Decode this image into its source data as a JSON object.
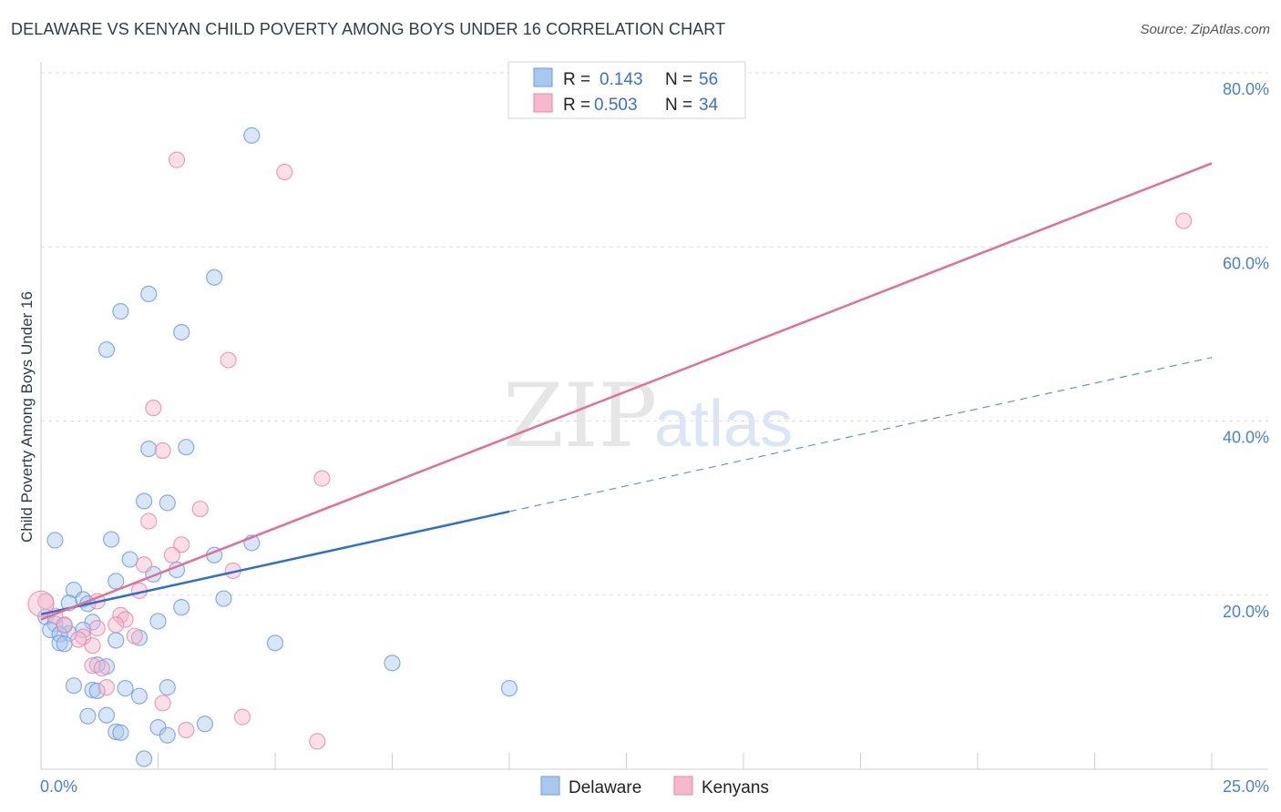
{
  "title": "DELAWARE VS KENYAN CHILD POVERTY AMONG BOYS UNDER 16 CORRELATION CHART",
  "source": "Source: ZipAtlas.com",
  "watermark": {
    "zip": "ZIP",
    "atlas": "atlas"
  },
  "legend": {
    "r_label": "R =",
    "n_label": "N =",
    "rows": [
      {
        "r": "0.143",
        "n": "56"
      },
      {
        "r": "0.503",
        "n": "34"
      }
    ]
  },
  "colors": {
    "delaware_fill": "#a9c8f0",
    "delaware_stroke": "#6b9be0",
    "delaware_line": "#2e6fce",
    "kenyans_fill": "#f5b8cc",
    "kenyans_stroke": "#e889a8",
    "kenyans_line": "#e07098"
  },
  "chart_data": {
    "type": "scatter",
    "title": "DELAWARE VS KENYAN CHILD POVERTY AMONG BOYS UNDER 16 CORRELATION CHART",
    "xlabel": "",
    "ylabel": "Child Poverty Among Boys Under 16",
    "xlim": [
      0,
      25
    ],
    "ylim": [
      0,
      80
    ],
    "x_tick_labels": [
      "0.0%",
      "25.0%"
    ],
    "y_ticks": [
      20,
      40,
      60,
      80
    ],
    "y_tick_labels": [
      "20.0%",
      "40.0%",
      "60.0%",
      "80.0%"
    ],
    "grid": true,
    "legend_position": "top-center",
    "series": [
      {
        "name": "Delaware",
        "r": 0.143,
        "n": 56,
        "trend": {
          "x0": 0,
          "y0": 17.8,
          "x1": 10,
          "y1": 29.6,
          "dashed_to_x": 25,
          "dashed_to_y": 47.3
        },
        "points": [
          [
            4.5,
            72.8
          ],
          [
            3.7,
            56.5
          ],
          [
            2.3,
            54.6
          ],
          [
            1.7,
            52.6
          ],
          [
            3.0,
            50.2
          ],
          [
            1.4,
            48.2
          ],
          [
            2.3,
            36.8
          ],
          [
            3.1,
            37.0
          ],
          [
            2.2,
            30.8
          ],
          [
            2.7,
            30.6
          ],
          [
            0.3,
            26.3
          ],
          [
            1.5,
            26.4
          ],
          [
            4.5,
            26.0
          ],
          [
            1.9,
            24.1
          ],
          [
            3.7,
            24.6
          ],
          [
            2.4,
            22.4
          ],
          [
            2.9,
            22.9
          ],
          [
            1.6,
            21.6
          ],
          [
            0.7,
            20.6
          ],
          [
            0.9,
            19.5
          ],
          [
            1.0,
            19.0
          ],
          [
            0.6,
            19.1
          ],
          [
            3.9,
            19.6
          ],
          [
            3.0,
            18.6
          ],
          [
            0.1,
            17.5
          ],
          [
            2.5,
            17.0
          ],
          [
            0.3,
            16.7
          ],
          [
            0.5,
            16.5
          ],
          [
            1.1,
            16.9
          ],
          [
            0.9,
            16.0
          ],
          [
            0.2,
            16.0
          ],
          [
            0.6,
            15.6
          ],
          [
            0.4,
            15.5
          ],
          [
            2.1,
            15.1
          ],
          [
            1.6,
            14.8
          ],
          [
            0.4,
            14.5
          ],
          [
            0.5,
            14.4
          ],
          [
            5.0,
            14.5
          ],
          [
            7.5,
            12.2
          ],
          [
            1.4,
            11.8
          ],
          [
            1.2,
            12.0
          ],
          [
            0.7,
            9.6
          ],
          [
            1.8,
            9.3
          ],
          [
            1.1,
            9.1
          ],
          [
            1.2,
            9.0
          ],
          [
            2.7,
            9.4
          ],
          [
            10.0,
            9.3
          ],
          [
            2.1,
            8.4
          ],
          [
            1.0,
            6.1
          ],
          [
            1.4,
            6.2
          ],
          [
            3.5,
            5.2
          ],
          [
            2.5,
            4.8
          ],
          [
            1.6,
            4.3
          ],
          [
            1.7,
            4.2
          ],
          [
            2.7,
            3.9
          ],
          [
            2.2,
            1.2
          ]
        ]
      },
      {
        "name": "Kenyans",
        "r": 0.503,
        "n": 34,
        "trend": {
          "x0": 0,
          "y0": 17.2,
          "x1": 25,
          "y1": 69.6
        },
        "points": [
          [
            2.9,
            70.0
          ],
          [
            5.2,
            68.6
          ],
          [
            24.4,
            63.0
          ],
          [
            4.0,
            47.0
          ],
          [
            2.4,
            41.5
          ],
          [
            2.6,
            36.6
          ],
          [
            6.0,
            33.4
          ],
          [
            3.4,
            29.9
          ],
          [
            2.3,
            28.5
          ],
          [
            3.0,
            25.8
          ],
          [
            2.8,
            24.6
          ],
          [
            2.2,
            23.5
          ],
          [
            4.1,
            22.8
          ],
          [
            2.1,
            20.5
          ],
          [
            0.1,
            19.3
          ],
          [
            1.2,
            19.3
          ],
          [
            0.3,
            17.6
          ],
          [
            1.7,
            17.7
          ],
          [
            1.8,
            17.2
          ],
          [
            1.6,
            16.6
          ],
          [
            0.5,
            16.6
          ],
          [
            1.2,
            16.2
          ],
          [
            0.9,
            15.2
          ],
          [
            0.8,
            14.9
          ],
          [
            2.0,
            15.3
          ],
          [
            1.1,
            14.2
          ],
          [
            1.1,
            11.9
          ],
          [
            1.3,
            11.6
          ],
          [
            1.4,
            9.4
          ],
          [
            2.6,
            7.6
          ],
          [
            4.3,
            6.0
          ],
          [
            3.1,
            4.5
          ],
          [
            5.9,
            3.2
          ],
          [
            0.0,
            19.0
          ]
        ]
      }
    ]
  }
}
